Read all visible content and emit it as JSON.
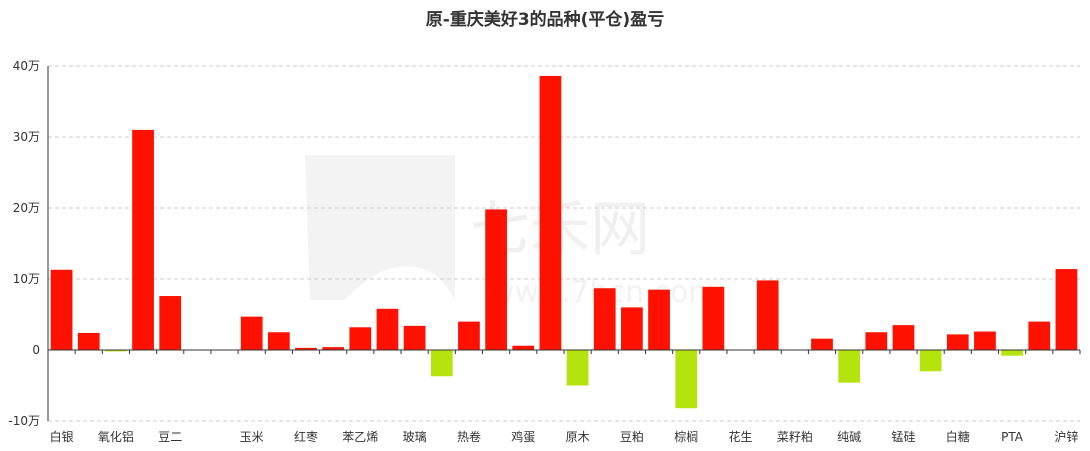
{
  "chart_data": {
    "type": "bar",
    "title": "原-重庆美好3的品种(平仓)盈亏",
    "categories": [
      "白银",
      "",
      "氧化铝",
      "",
      "豆二",
      "",
      "",
      "玉米",
      "",
      "红枣",
      "",
      "苯乙烯",
      "",
      "玻璃",
      "",
      "热卷",
      "",
      "鸡蛋",
      "",
      "原木",
      "",
      "豆粕",
      "",
      "棕榈",
      "",
      "花生",
      "",
      "菜籽粕",
      "",
      "纯碱",
      "",
      "锰硅",
      "",
      "白糖",
      "",
      "PTA",
      "",
      "沪锌"
    ],
    "values": [
      11.3,
      2.4,
      -0.2,
      31.0,
      7.6,
      0,
      0,
      4.7,
      2.5,
      0.3,
      0.4,
      3.2,
      5.8,
      3.4,
      -3.7,
      4.0,
      19.8,
      0.6,
      38.6,
      -5.0,
      8.7,
      6.0,
      8.5,
      -8.2,
      8.9,
      0,
      9.8,
      0,
      1.6,
      -4.6,
      2.5,
      3.5,
      -3.0,
      2.2,
      2.6,
      -0.8,
      4.0,
      11.4
    ],
    "ylim": [
      -10,
      40
    ],
    "yticks": [
      -10,
      0,
      10,
      20,
      30,
      40
    ],
    "ytick_labels": [
      "-10万",
      "0",
      "10万",
      "20万",
      "30万",
      "40万"
    ],
    "grid": true,
    "colors": {
      "positive": "#ff1100",
      "negative": "#b5e30d"
    }
  },
  "watermark": {
    "brand": "七禾网",
    "url": "www.7hcn.com"
  }
}
